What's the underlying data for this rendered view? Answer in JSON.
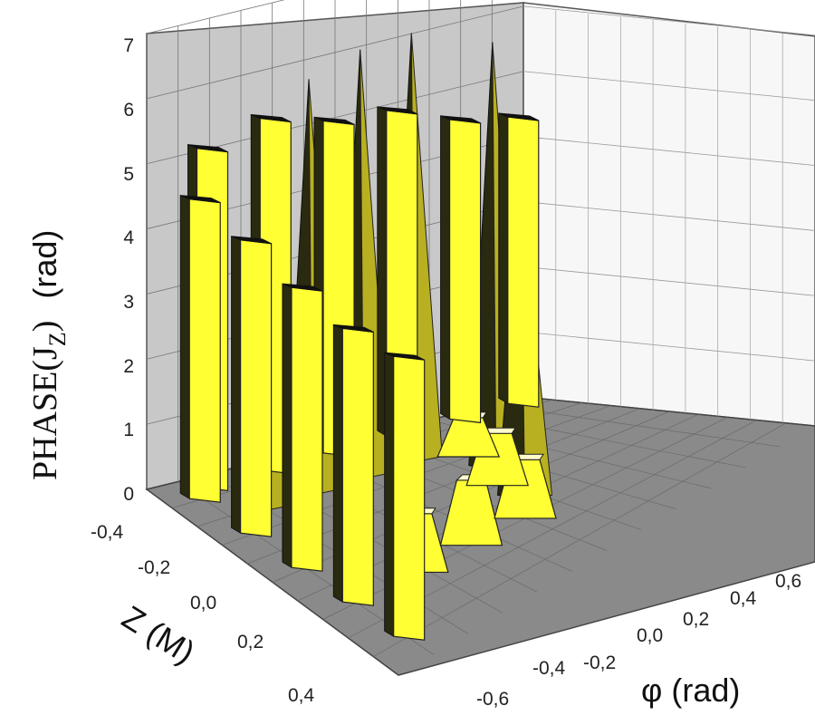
{
  "chart_data": {
    "type": "3d-surface",
    "zlabel": "PHASE(J",
    "zlabel_sub": "Z",
    "zlabel_tail": ")",
    "zlabel_unit": "(rad)",
    "ylabel": "Z (M)",
    "xlabel": "φ (rad)",
    "z_ticks": [
      "0",
      "1",
      "2",
      "3",
      "4",
      "5",
      "6",
      "7"
    ],
    "y_ticks": [
      "-0,4",
      "-0,2",
      "0,0",
      "0,2",
      "0,4"
    ],
    "x_ticks": [
      "-0,6",
      "-0,4",
      "-0,2",
      "0,0",
      "0,2",
      "0,4",
      "0,6"
    ],
    "zlim": [
      0,
      7
    ],
    "grid": true,
    "colors": {
      "surface": "#ffff33",
      "shade": "#2a2a10",
      "back_wall": "#c8c8c8",
      "floor": "#8a8a8a"
    },
    "pillars": [
      {
        "z": -0.4,
        "phi": -0.62,
        "value": 4.6
      },
      {
        "z": -0.2,
        "phi": -0.62,
        "value": 4.5
      },
      {
        "z": 0.0,
        "phi": -0.62,
        "value": 4.3
      },
      {
        "z": 0.2,
        "phi": -0.62,
        "value": 4.2
      },
      {
        "z": 0.4,
        "phi": -0.62,
        "value": 4.3
      },
      {
        "z": -0.44,
        "phi": -0.55,
        "value": 5.2
      },
      {
        "z": -0.44,
        "phi": -0.3,
        "value": 5.4
      },
      {
        "z": -0.44,
        "phi": -0.05,
        "value": 5.1
      },
      {
        "z": -0.44,
        "phi": 0.2,
        "value": 5.0
      },
      {
        "z": -0.44,
        "phi": 0.45,
        "value": 4.6
      },
      {
        "z": -0.44,
        "phi": 0.68,
        "value": 4.4
      }
    ],
    "spikes": [
      {
        "z": -0.3,
        "phi": -0.5,
        "value": 5.0
      },
      {
        "z": -0.3,
        "phi": -0.3,
        "value": 6.3
      },
      {
        "z": -0.3,
        "phi": -0.1,
        "value": 6.5
      },
      {
        "z": -0.3,
        "phi": 0.1,
        "value": 6.5
      },
      {
        "z": -0.1,
        "phi": 0.2,
        "value": 6.5
      },
      {
        "z": 0.1,
        "phi": 0.1,
        "value": 4.6
      }
    ],
    "mesas": [
      {
        "z": 0.2,
        "phi": -0.4,
        "value": 0.9
      },
      {
        "z": 0.2,
        "phi": -0.2,
        "value": 1.0
      },
      {
        "z": 0.2,
        "phi": 0.0,
        "value": 0.9
      },
      {
        "z": 0.0,
        "phi": 0.1,
        "value": 0.8
      },
      {
        "z": -0.2,
        "phi": 0.2,
        "value": 0.6
      }
    ]
  }
}
